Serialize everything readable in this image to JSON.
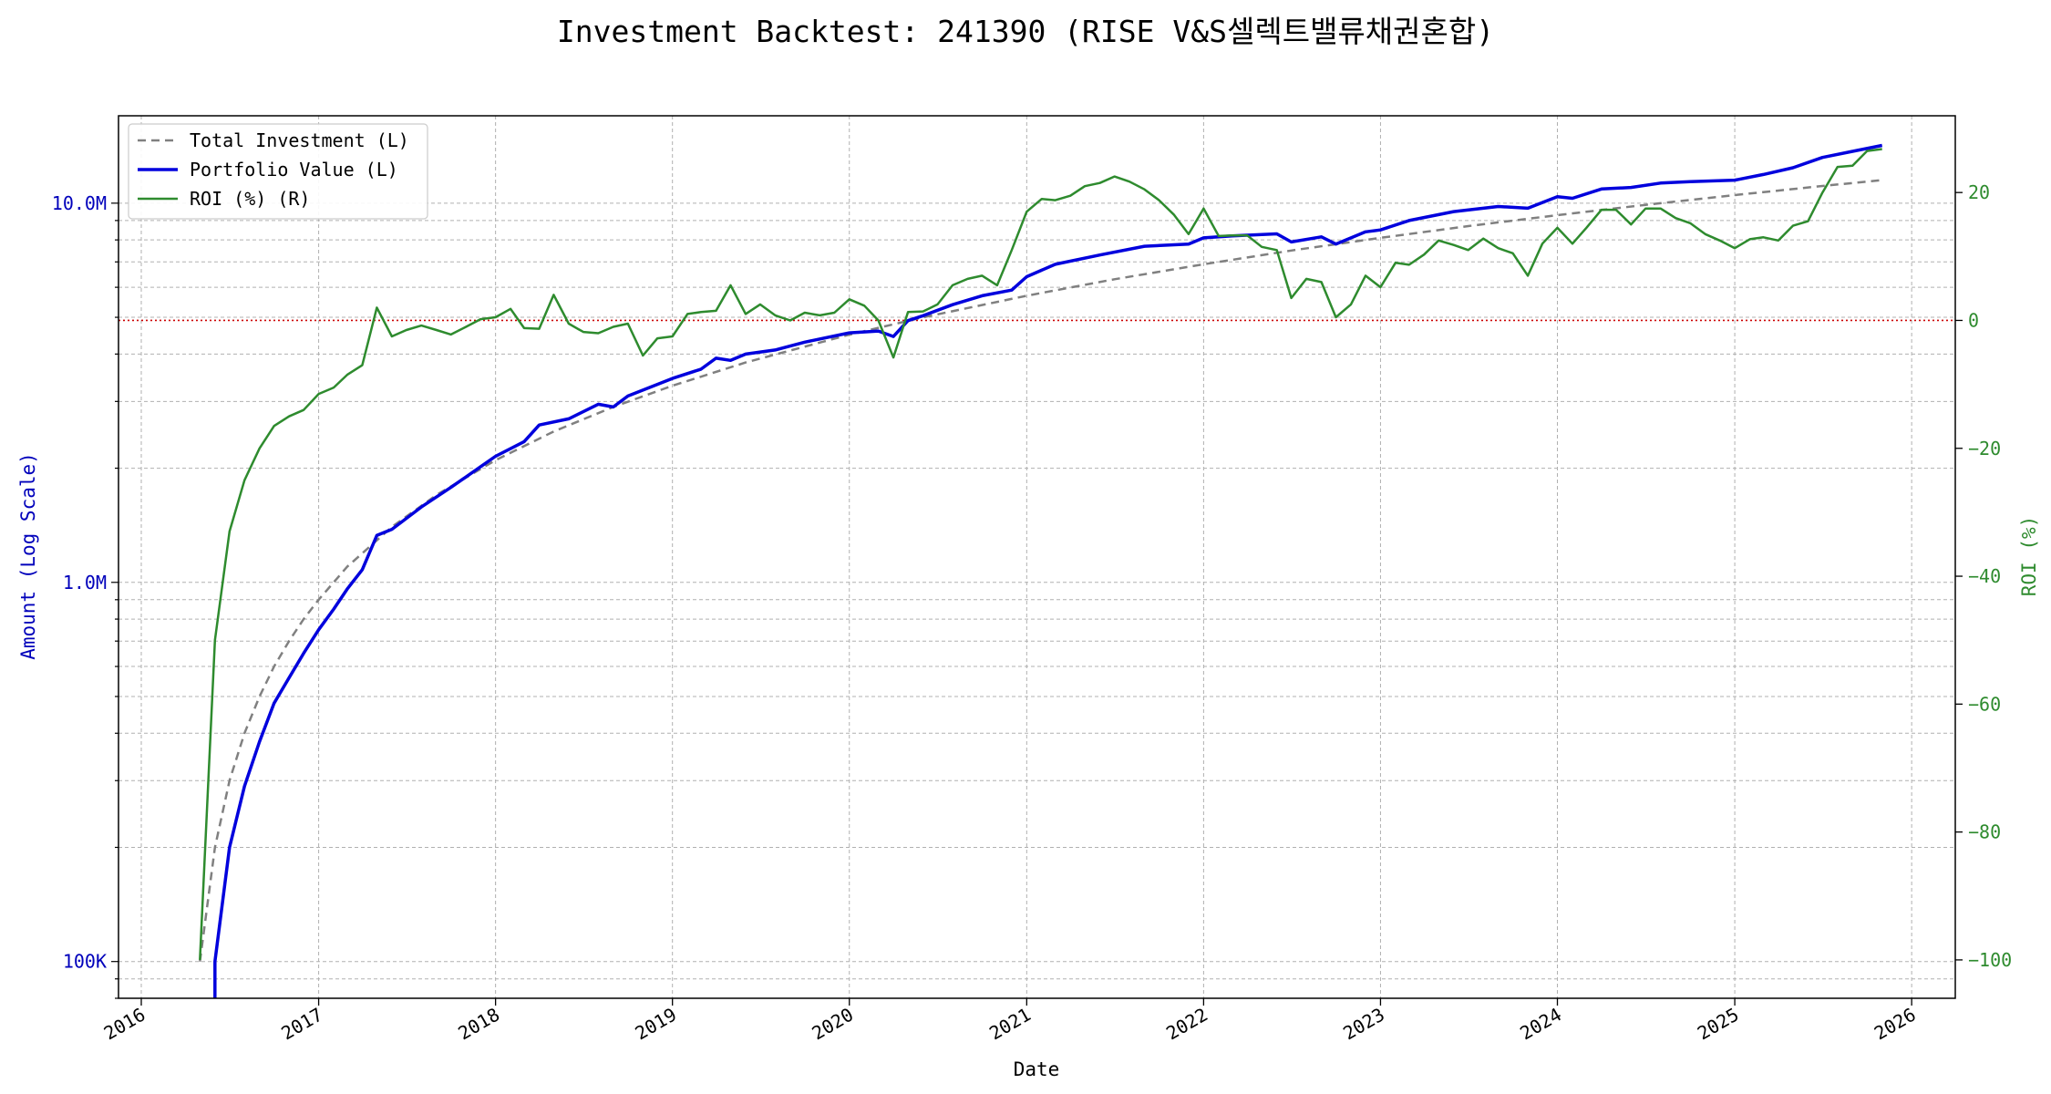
{
  "chart_data": {
    "type": "line",
    "title": "Investment Backtest: 241390 (RISE V&S셀렉트밸류채권혼합)",
    "xlabel": "Date",
    "ylabel_left": "Amount (Log Scale)",
    "ylabel_right": "ROI (%)",
    "x_ticks": [
      "2016",
      "2017",
      "2018",
      "2019",
      "2020",
      "2021",
      "2022",
      "2023",
      "2024",
      "2025",
      "2026"
    ],
    "y_left_ticks": [
      {
        "value": 100000,
        "label": "100K"
      },
      {
        "value": 1000000,
        "label": "1.0M"
      },
      {
        "value": 10000000,
        "label": "10.0M"
      }
    ],
    "y_left_range": [
      80000,
      17000000
    ],
    "y_left_scale": "log",
    "y_right_ticks": [
      {
        "value": -100,
        "label": "−100"
      },
      {
        "value": -80,
        "label": "−80"
      },
      {
        "value": -60,
        "label": "−60"
      },
      {
        "value": -40,
        "label": "−40"
      },
      {
        "value": -20,
        "label": "−20"
      },
      {
        "value": 0,
        "label": "0"
      },
      {
        "value": 20,
        "label": "20"
      }
    ],
    "y_right_range": [
      -106,
      32
    ],
    "x_range": [
      "2015-11-15",
      "2026-04-01"
    ],
    "grid": true,
    "legend_position": "top-left",
    "zero_reference_line": {
      "value": 0,
      "axis": "right",
      "color": "#cc0000",
      "style": "dotted"
    },
    "colors": {
      "total_investment": "#808080",
      "portfolio_value": "#0000dd",
      "roi": "#2e8b2e",
      "left_axis_text": "#0000bb",
      "right_axis_text": "#2e8b2e"
    },
    "series": [
      {
        "name": "Total Investment (L)",
        "axis": "left",
        "style": "dashed",
        "points": [
          [
            "2016-05-01",
            100000
          ],
          [
            "2016-06-01",
            200000
          ],
          [
            "2016-07-01",
            300000
          ],
          [
            "2016-08-01",
            400000
          ],
          [
            "2016-09-01",
            500000
          ],
          [
            "2016-10-01",
            600000
          ],
          [
            "2016-11-01",
            700000
          ],
          [
            "2016-12-01",
            800000
          ],
          [
            "2017-01-01",
            900000
          ],
          [
            "2017-03-01",
            1100000
          ],
          [
            "2017-06-01",
            1400000
          ],
          [
            "2017-09-01",
            1700000
          ],
          [
            "2018-01-01",
            2100000
          ],
          [
            "2018-05-01",
            2500000
          ],
          [
            "2018-09-01",
            2900000
          ],
          [
            "2019-01-01",
            3300000
          ],
          [
            "2019-06-01",
            3800000
          ],
          [
            "2020-01-01",
            4500000
          ],
          [
            "2020-06-01",
            5000000
          ],
          [
            "2021-01-01",
            5700000
          ],
          [
            "2021-07-01",
            6300000
          ],
          [
            "2022-01-01",
            6900000
          ],
          [
            "2022-07-01",
            7500000
          ],
          [
            "2023-01-01",
            8100000
          ],
          [
            "2023-07-01",
            8700000
          ],
          [
            "2024-01-01",
            9300000
          ],
          [
            "2024-07-01",
            9900000
          ],
          [
            "2025-01-01",
            10500000
          ],
          [
            "2025-07-01",
            11100000
          ],
          [
            "2025-11-01",
            11500000
          ]
        ]
      },
      {
        "name": "Portfolio Value (L)",
        "axis": "left",
        "style": "solid",
        "points": [
          [
            "2016-06-01",
            80000
          ],
          [
            "2016-06-01",
            100000
          ],
          [
            "2016-07-01",
            200000
          ],
          [
            "2016-08-01",
            290000
          ],
          [
            "2016-09-01",
            380000
          ],
          [
            "2016-10-01",
            480000
          ],
          [
            "2016-11-01",
            560000
          ],
          [
            "2016-12-01",
            650000
          ],
          [
            "2017-01-01",
            750000
          ],
          [
            "2017-02-01",
            850000
          ],
          [
            "2017-03-01",
            960000
          ],
          [
            "2017-04-01",
            1080000
          ],
          [
            "2017-05-01",
            1330000
          ],
          [
            "2017-06-01",
            1380000
          ],
          [
            "2017-08-01",
            1580000
          ],
          [
            "2017-10-01",
            1780000
          ],
          [
            "2018-01-01",
            2150000
          ],
          [
            "2018-03-01",
            2350000
          ],
          [
            "2018-04-01",
            2600000
          ],
          [
            "2018-06-01",
            2700000
          ],
          [
            "2018-08-01",
            2950000
          ],
          [
            "2018-09-01",
            2900000
          ],
          [
            "2018-10-01",
            3100000
          ],
          [
            "2019-01-01",
            3450000
          ],
          [
            "2019-03-01",
            3650000
          ],
          [
            "2019-04-01",
            3900000
          ],
          [
            "2019-05-01",
            3850000
          ],
          [
            "2019-06-01",
            4000000
          ],
          [
            "2019-08-01",
            4100000
          ],
          [
            "2019-10-01",
            4300000
          ],
          [
            "2020-01-01",
            4550000
          ],
          [
            "2020-03-01",
            4600000
          ],
          [
            "2020-04-01",
            4450000
          ],
          [
            "2020-05-01",
            4900000
          ],
          [
            "2020-06-01",
            5050000
          ],
          [
            "2020-08-01",
            5400000
          ],
          [
            "2020-10-01",
            5700000
          ],
          [
            "2020-12-01",
            5900000
          ],
          [
            "2021-01-01",
            6400000
          ],
          [
            "2021-03-01",
            6900000
          ],
          [
            "2021-06-01",
            7300000
          ],
          [
            "2021-09-01",
            7700000
          ],
          [
            "2021-12-01",
            7800000
          ],
          [
            "2022-01-01",
            8100000
          ],
          [
            "2022-03-01",
            8200000
          ],
          [
            "2022-06-01",
            8300000
          ],
          [
            "2022-07-01",
            7900000
          ],
          [
            "2022-09-01",
            8150000
          ],
          [
            "2022-10-01",
            7800000
          ],
          [
            "2022-12-01",
            8400000
          ],
          [
            "2023-01-01",
            8500000
          ],
          [
            "2023-03-01",
            9000000
          ],
          [
            "2023-06-01",
            9500000
          ],
          [
            "2023-09-01",
            9800000
          ],
          [
            "2023-11-01",
            9700000
          ],
          [
            "2024-01-01",
            10400000
          ],
          [
            "2024-02-01",
            10300000
          ],
          [
            "2024-04-01",
            10900000
          ],
          [
            "2024-06-01",
            11000000
          ],
          [
            "2024-08-01",
            11300000
          ],
          [
            "2024-10-01",
            11400000
          ],
          [
            "2025-01-01",
            11500000
          ],
          [
            "2025-03-01",
            11900000
          ],
          [
            "2025-05-01",
            12400000
          ],
          [
            "2025-07-01",
            13200000
          ],
          [
            "2025-09-01",
            13700000
          ],
          [
            "2025-11-01",
            14200000
          ]
        ]
      },
      {
        "name": "ROI (%) (R)",
        "axis": "right",
        "style": "solid",
        "points": [
          [
            "2016-05-01",
            -100
          ],
          [
            "2016-06-01",
            -50
          ],
          [
            "2016-07-01",
            -33
          ],
          [
            "2016-08-01",
            -25
          ],
          [
            "2016-09-01",
            -20
          ],
          [
            "2016-10-01",
            -16.5
          ],
          [
            "2016-11-01",
            -15
          ],
          [
            "2016-12-01",
            -14
          ],
          [
            "2017-01-01",
            -11.5
          ],
          [
            "2017-02-01",
            -10.5
          ],
          [
            "2017-03-01",
            -8.5
          ],
          [
            "2017-04-01",
            -7
          ],
          [
            "2017-05-01",
            2
          ],
          [
            "2017-06-01",
            -2.5
          ],
          [
            "2017-07-01",
            -1.5
          ],
          [
            "2017-08-01",
            -0.8
          ],
          [
            "2017-09-01",
            -1.5
          ],
          [
            "2017-10-01",
            -2.2
          ],
          [
            "2017-11-01",
            -1
          ],
          [
            "2017-12-01",
            0.2
          ],
          [
            "2018-01-01",
            0.5
          ],
          [
            "2018-02-01",
            1.8
          ],
          [
            "2018-03-01",
            -1.2
          ],
          [
            "2018-04-01",
            -1.3
          ],
          [
            "2018-05-01",
            4
          ],
          [
            "2018-06-01",
            -0.5
          ],
          [
            "2018-07-01",
            -1.8
          ],
          [
            "2018-08-01",
            -2
          ],
          [
            "2018-09-01",
            -1
          ],
          [
            "2018-10-01",
            -0.5
          ],
          [
            "2018-11-01",
            -5.5
          ],
          [
            "2018-12-01",
            -2.8
          ],
          [
            "2019-01-01",
            -2.5
          ],
          [
            "2019-02-01",
            1
          ],
          [
            "2019-03-01",
            1.3
          ],
          [
            "2019-04-01",
            1.5
          ],
          [
            "2019-05-01",
            5.5
          ],
          [
            "2019-06-01",
            1
          ],
          [
            "2019-07-01",
            2.5
          ],
          [
            "2019-08-01",
            0.8
          ],
          [
            "2019-09-01",
            0
          ],
          [
            "2019-10-01",
            1.2
          ],
          [
            "2019-11-01",
            0.8
          ],
          [
            "2019-12-01",
            1.2
          ],
          [
            "2020-01-01",
            3.3
          ],
          [
            "2020-02-01",
            2.3
          ],
          [
            "2020-03-01",
            0
          ],
          [
            "2020-04-01",
            -5.8
          ],
          [
            "2020-05-01",
            1.3
          ],
          [
            "2020-06-01",
            1.4
          ],
          [
            "2020-07-01",
            2.5
          ],
          [
            "2020-08-01",
            5.5
          ],
          [
            "2020-09-01",
            6.5
          ],
          [
            "2020-10-01",
            7
          ],
          [
            "2020-11-01",
            5.5
          ],
          [
            "2020-12-01",
            11
          ],
          [
            "2021-01-01",
            17
          ],
          [
            "2021-02-01",
            19
          ],
          [
            "2021-03-01",
            18.8
          ],
          [
            "2021-04-01",
            19.5
          ],
          [
            "2021-05-01",
            21
          ],
          [
            "2021-06-01",
            21.5
          ],
          [
            "2021-07-01",
            22.5
          ],
          [
            "2021-08-01",
            21.7
          ],
          [
            "2021-09-01",
            20.5
          ],
          [
            "2021-10-01",
            18.8
          ],
          [
            "2021-11-01",
            16.5
          ],
          [
            "2021-12-01",
            13.5
          ],
          [
            "2022-01-01",
            17.5
          ],
          [
            "2022-02-01",
            13.2
          ],
          [
            "2022-03-01",
            13.3
          ],
          [
            "2022-04-01",
            13.3
          ],
          [
            "2022-05-01",
            11.5
          ],
          [
            "2022-06-01",
            11
          ],
          [
            "2022-07-01",
            3.5
          ],
          [
            "2022-08-01",
            6.5
          ],
          [
            "2022-09-01",
            6
          ],
          [
            "2022-10-01",
            0.5
          ],
          [
            "2022-11-01",
            2.5
          ],
          [
            "2022-12-01",
            7
          ],
          [
            "2023-01-01",
            5.2
          ],
          [
            "2023-02-01",
            9
          ],
          [
            "2023-03-01",
            8.7
          ],
          [
            "2023-04-01",
            10.3
          ],
          [
            "2023-05-01",
            12.5
          ],
          [
            "2023-06-01",
            11.8
          ],
          [
            "2023-07-01",
            11
          ],
          [
            "2023-08-01",
            12.8
          ],
          [
            "2023-09-01",
            11.3
          ],
          [
            "2023-10-01",
            10.5
          ],
          [
            "2023-11-01",
            7
          ],
          [
            "2023-12-01",
            12
          ],
          [
            "2024-01-01",
            14.5
          ],
          [
            "2024-02-01",
            12
          ],
          [
            "2024-03-01",
            14.5
          ],
          [
            "2024-04-01",
            17.3
          ],
          [
            "2024-05-01",
            17.3
          ],
          [
            "2024-06-01",
            15
          ],
          [
            "2024-07-01",
            17.5
          ],
          [
            "2024-08-01",
            17.5
          ],
          [
            "2024-09-01",
            16
          ],
          [
            "2024-10-01",
            15.2
          ],
          [
            "2024-11-01",
            13.5
          ],
          [
            "2024-12-01",
            12.5
          ],
          [
            "2025-01-01",
            11.3
          ],
          [
            "2025-02-01",
            12.7
          ],
          [
            "2025-03-01",
            13
          ],
          [
            "2025-04-01",
            12.5
          ],
          [
            "2025-05-01",
            14.8
          ],
          [
            "2025-06-01",
            15.5
          ],
          [
            "2025-07-01",
            20
          ],
          [
            "2025-08-01",
            24
          ],
          [
            "2025-09-01",
            24.2
          ],
          [
            "2025-10-01",
            26.5
          ],
          [
            "2025-11-01",
            26.8
          ]
        ]
      }
    ]
  }
}
